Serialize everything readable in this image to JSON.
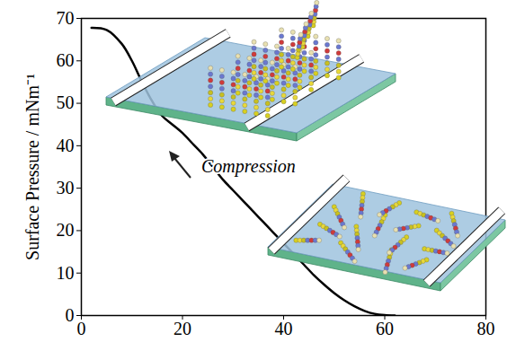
{
  "chart_data": {
    "type": "line",
    "y_label": "Surface Pressure / mNm⁻¹",
    "annotation": "Compression",
    "color": "#000000",
    "x": [
      2,
      5,
      8,
      10,
      12,
      14,
      16,
      18,
      20,
      22,
      24,
      26,
      28,
      30,
      32,
      34,
      36,
      38,
      40,
      42,
      44,
      46,
      48,
      50,
      52,
      54,
      56,
      58,
      60,
      62
    ],
    "values": [
      67.8,
      67.3,
      64,
      60,
      55,
      50.5,
      47,
      45,
      43,
      40.5,
      38,
      35,
      32,
      29.5,
      27,
      24.5,
      22,
      19.5,
      17,
      14.5,
      12,
      9.5,
      7.3,
      5.3,
      3.6,
      2.2,
      1.1,
      0.4,
      0.1,
      0
    ],
    "xlim": [
      0,
      80
    ],
    "ylim": [
      0,
      70
    ],
    "xticks": [
      0,
      20,
      40,
      60,
      80
    ],
    "yticks": [
      0,
      10,
      20,
      30,
      40,
      50,
      60,
      70
    ],
    "grid": false
  }
}
